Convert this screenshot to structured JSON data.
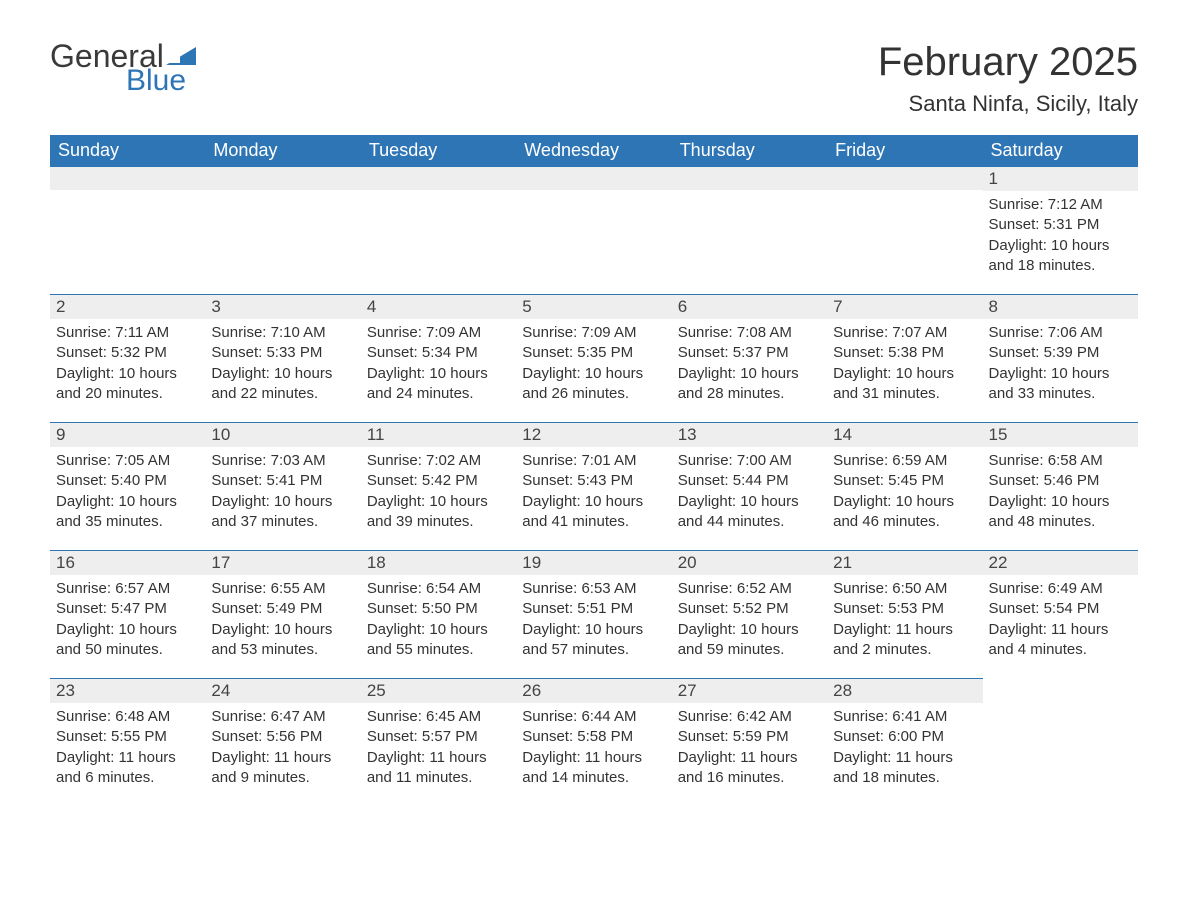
{
  "logo": {
    "text1": "General",
    "text2": "Blue"
  },
  "title": "February 2025",
  "location": "Santa Ninfa, Sicily, Italy",
  "colors": {
    "header_bg": "#2e75b6",
    "header_text": "#ffffff",
    "daynum_bg": "#eeeeee",
    "border_top": "#2e75b6",
    "body_text": "#333333"
  },
  "daysOfWeek": [
    "Sunday",
    "Monday",
    "Tuesday",
    "Wednesday",
    "Thursday",
    "Friday",
    "Saturday"
  ],
  "weeks": [
    [
      null,
      null,
      null,
      null,
      null,
      null,
      {
        "n": "1",
        "sunrise": "Sunrise: 7:12 AM",
        "sunset": "Sunset: 5:31 PM",
        "dl1": "Daylight: 10 hours",
        "dl2": "and 18 minutes."
      }
    ],
    [
      {
        "n": "2",
        "sunrise": "Sunrise: 7:11 AM",
        "sunset": "Sunset: 5:32 PM",
        "dl1": "Daylight: 10 hours",
        "dl2": "and 20 minutes."
      },
      {
        "n": "3",
        "sunrise": "Sunrise: 7:10 AM",
        "sunset": "Sunset: 5:33 PM",
        "dl1": "Daylight: 10 hours",
        "dl2": "and 22 minutes."
      },
      {
        "n": "4",
        "sunrise": "Sunrise: 7:09 AM",
        "sunset": "Sunset: 5:34 PM",
        "dl1": "Daylight: 10 hours",
        "dl2": "and 24 minutes."
      },
      {
        "n": "5",
        "sunrise": "Sunrise: 7:09 AM",
        "sunset": "Sunset: 5:35 PM",
        "dl1": "Daylight: 10 hours",
        "dl2": "and 26 minutes."
      },
      {
        "n": "6",
        "sunrise": "Sunrise: 7:08 AM",
        "sunset": "Sunset: 5:37 PM",
        "dl1": "Daylight: 10 hours",
        "dl2": "and 28 minutes."
      },
      {
        "n": "7",
        "sunrise": "Sunrise: 7:07 AM",
        "sunset": "Sunset: 5:38 PM",
        "dl1": "Daylight: 10 hours",
        "dl2": "and 31 minutes."
      },
      {
        "n": "8",
        "sunrise": "Sunrise: 7:06 AM",
        "sunset": "Sunset: 5:39 PM",
        "dl1": "Daylight: 10 hours",
        "dl2": "and 33 minutes."
      }
    ],
    [
      {
        "n": "9",
        "sunrise": "Sunrise: 7:05 AM",
        "sunset": "Sunset: 5:40 PM",
        "dl1": "Daylight: 10 hours",
        "dl2": "and 35 minutes."
      },
      {
        "n": "10",
        "sunrise": "Sunrise: 7:03 AM",
        "sunset": "Sunset: 5:41 PM",
        "dl1": "Daylight: 10 hours",
        "dl2": "and 37 minutes."
      },
      {
        "n": "11",
        "sunrise": "Sunrise: 7:02 AM",
        "sunset": "Sunset: 5:42 PM",
        "dl1": "Daylight: 10 hours",
        "dl2": "and 39 minutes."
      },
      {
        "n": "12",
        "sunrise": "Sunrise: 7:01 AM",
        "sunset": "Sunset: 5:43 PM",
        "dl1": "Daylight: 10 hours",
        "dl2": "and 41 minutes."
      },
      {
        "n": "13",
        "sunrise": "Sunrise: 7:00 AM",
        "sunset": "Sunset: 5:44 PM",
        "dl1": "Daylight: 10 hours",
        "dl2": "and 44 minutes."
      },
      {
        "n": "14",
        "sunrise": "Sunrise: 6:59 AM",
        "sunset": "Sunset: 5:45 PM",
        "dl1": "Daylight: 10 hours",
        "dl2": "and 46 minutes."
      },
      {
        "n": "15",
        "sunrise": "Sunrise: 6:58 AM",
        "sunset": "Sunset: 5:46 PM",
        "dl1": "Daylight: 10 hours",
        "dl2": "and 48 minutes."
      }
    ],
    [
      {
        "n": "16",
        "sunrise": "Sunrise: 6:57 AM",
        "sunset": "Sunset: 5:47 PM",
        "dl1": "Daylight: 10 hours",
        "dl2": "and 50 minutes."
      },
      {
        "n": "17",
        "sunrise": "Sunrise: 6:55 AM",
        "sunset": "Sunset: 5:49 PM",
        "dl1": "Daylight: 10 hours",
        "dl2": "and 53 minutes."
      },
      {
        "n": "18",
        "sunrise": "Sunrise: 6:54 AM",
        "sunset": "Sunset: 5:50 PM",
        "dl1": "Daylight: 10 hours",
        "dl2": "and 55 minutes."
      },
      {
        "n": "19",
        "sunrise": "Sunrise: 6:53 AM",
        "sunset": "Sunset: 5:51 PM",
        "dl1": "Daylight: 10 hours",
        "dl2": "and 57 minutes."
      },
      {
        "n": "20",
        "sunrise": "Sunrise: 6:52 AM",
        "sunset": "Sunset: 5:52 PM",
        "dl1": "Daylight: 10 hours",
        "dl2": "and 59 minutes."
      },
      {
        "n": "21",
        "sunrise": "Sunrise: 6:50 AM",
        "sunset": "Sunset: 5:53 PM",
        "dl1": "Daylight: 11 hours",
        "dl2": "and 2 minutes."
      },
      {
        "n": "22",
        "sunrise": "Sunrise: 6:49 AM",
        "sunset": "Sunset: 5:54 PM",
        "dl1": "Daylight: 11 hours",
        "dl2": "and 4 minutes."
      }
    ],
    [
      {
        "n": "23",
        "sunrise": "Sunrise: 6:48 AM",
        "sunset": "Sunset: 5:55 PM",
        "dl1": "Daylight: 11 hours",
        "dl2": "and 6 minutes."
      },
      {
        "n": "24",
        "sunrise": "Sunrise: 6:47 AM",
        "sunset": "Sunset: 5:56 PM",
        "dl1": "Daylight: 11 hours",
        "dl2": "and 9 minutes."
      },
      {
        "n": "25",
        "sunrise": "Sunrise: 6:45 AM",
        "sunset": "Sunset: 5:57 PM",
        "dl1": "Daylight: 11 hours",
        "dl2": "and 11 minutes."
      },
      {
        "n": "26",
        "sunrise": "Sunrise: 6:44 AM",
        "sunset": "Sunset: 5:58 PM",
        "dl1": "Daylight: 11 hours",
        "dl2": "and 14 minutes."
      },
      {
        "n": "27",
        "sunrise": "Sunrise: 6:42 AM",
        "sunset": "Sunset: 5:59 PM",
        "dl1": "Daylight: 11 hours",
        "dl2": "and 16 minutes."
      },
      {
        "n": "28",
        "sunrise": "Sunrise: 6:41 AM",
        "sunset": "Sunset: 6:00 PM",
        "dl1": "Daylight: 11 hours",
        "dl2": "and 18 minutes."
      },
      null
    ]
  ]
}
